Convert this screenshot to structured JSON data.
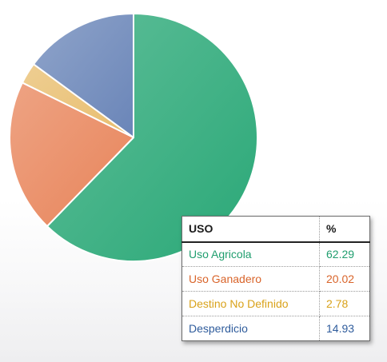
{
  "chart_data": {
    "type": "pie",
    "categories": [
      "Uso Agricola",
      "Uso Ganadero",
      "Destino No Definido",
      "Desperdicio"
    ],
    "values": [
      62.29,
      20.02,
      2.78,
      14.93
    ],
    "colors": [
      "#2aa877",
      "#e8845a",
      "#e8bd6e",
      "#6a85b8"
    ],
    "start_angle_deg": 0,
    "direction": "clockwise"
  },
  "table": {
    "header_use": "USO",
    "header_pct": "%",
    "rows": [
      {
        "label": "Uso Agricola",
        "value": "62.29",
        "color": "#1f9e6e"
      },
      {
        "label": "Uso Ganadero",
        "value": "20.02",
        "color": "#d9642a"
      },
      {
        "label": "Destino No Definido",
        "value": "2.78",
        "color": "#d9a21a"
      },
      {
        "label": "Desperdicio",
        "value": "14.93",
        "color": "#2f5c9c"
      }
    ]
  }
}
